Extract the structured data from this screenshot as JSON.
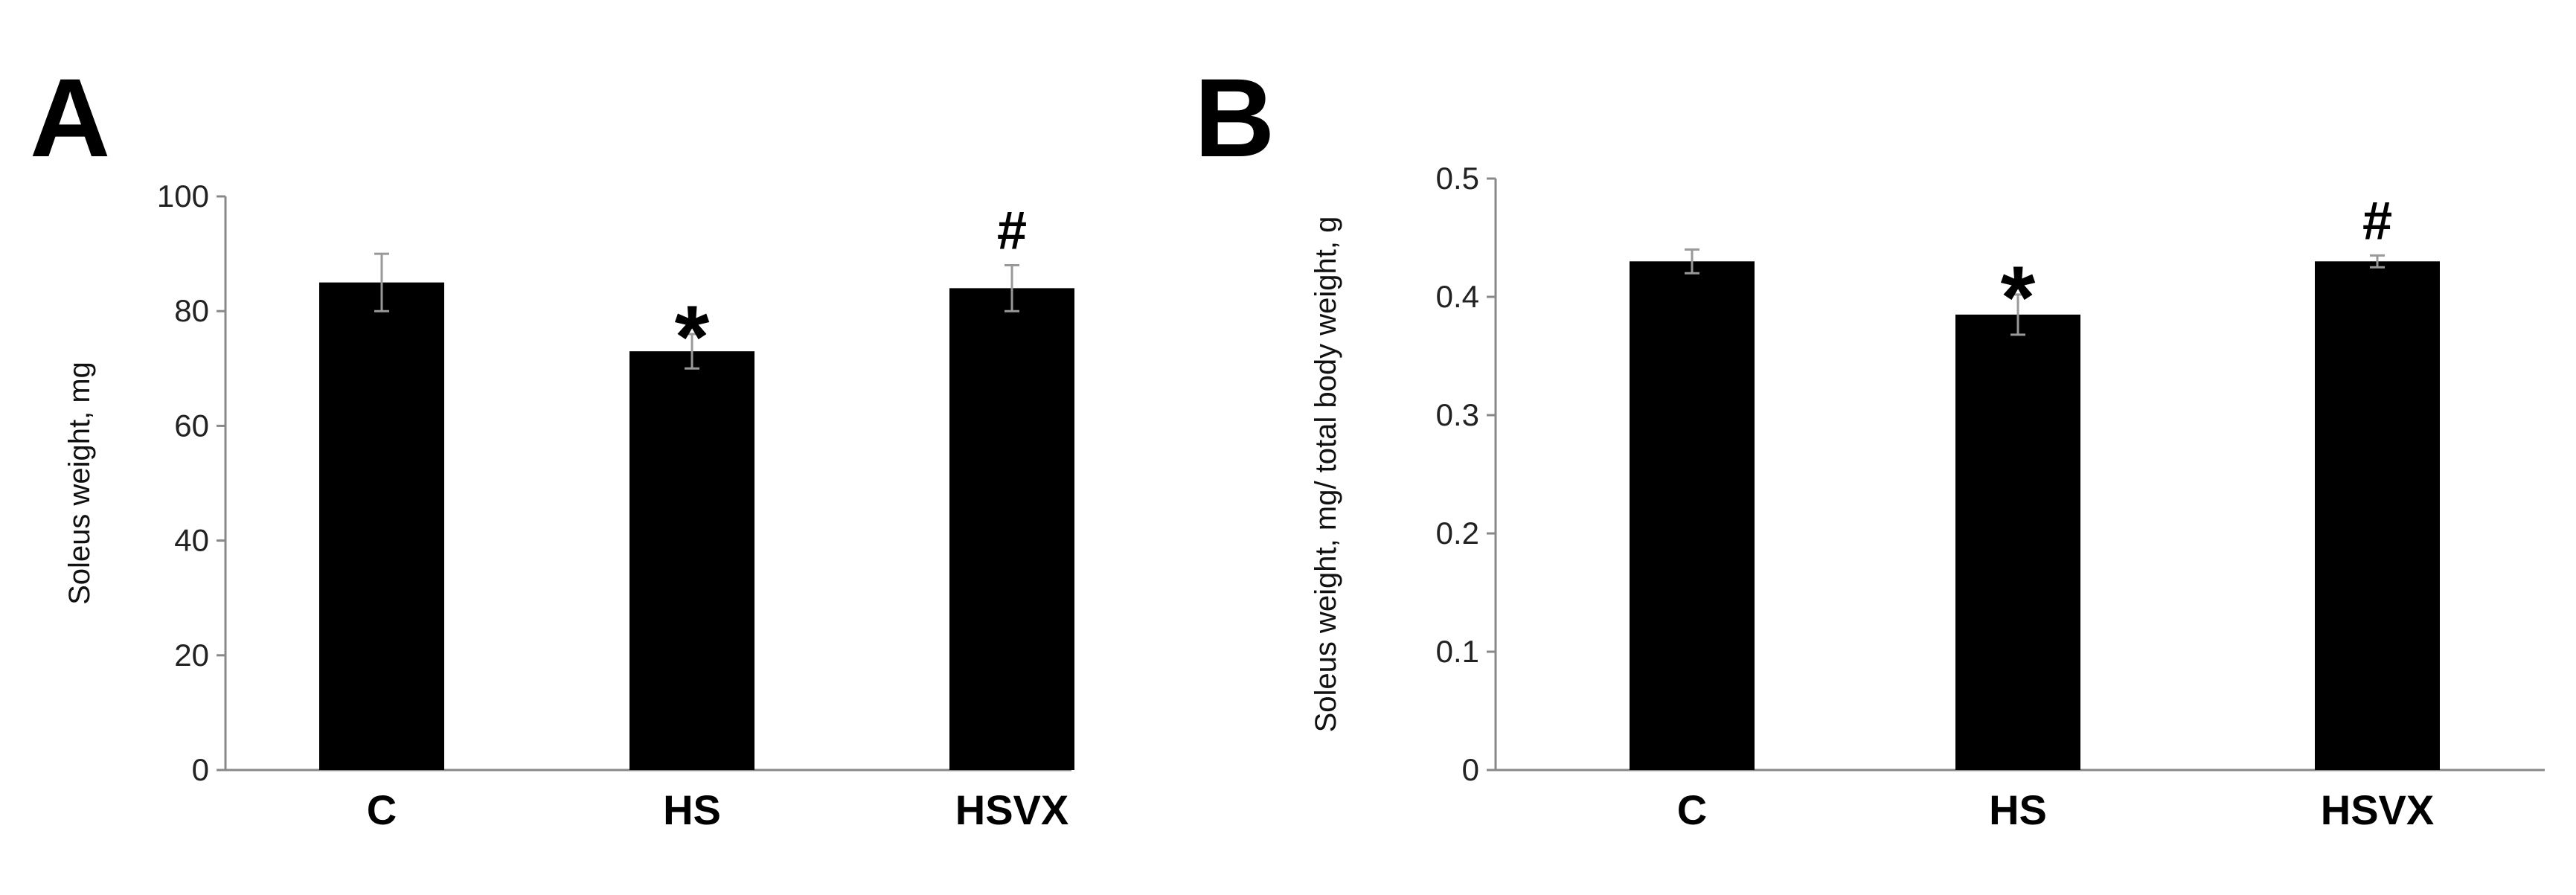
{
  "chart_data": [
    {
      "type": "bar",
      "panel": "A",
      "title": "",
      "xlabel": "",
      "ylabel": "Soleus weight, mg",
      "categories": [
        "C",
        "HS",
        "HSVX"
      ],
      "values": [
        85,
        73,
        84
      ],
      "errors": [
        5,
        3,
        4
      ],
      "annotations": [
        "",
        "*",
        "#"
      ],
      "ylim": [
        0,
        100
      ],
      "yticks": [
        0,
        20,
        40,
        60,
        80,
        100
      ],
      "ytick_labels": [
        "0",
        "20",
        "40",
        "60",
        "80",
        "100"
      ],
      "grid": false,
      "bar_color": "#000000"
    },
    {
      "type": "bar",
      "panel": "B",
      "title": "",
      "xlabel": "",
      "ylabel": "Soleus weight, mg/ total body weight, g",
      "categories": [
        "C",
        "HS",
        "HSVX"
      ],
      "values": [
        0.43,
        0.385,
        0.43
      ],
      "errors": [
        0.01,
        0.017,
        0.005
      ],
      "annotations": [
        "",
        "*",
        "#"
      ],
      "ylim": [
        0,
        0.5
      ],
      "yticks": [
        0,
        0.1,
        0.2,
        0.3,
        0.4,
        0.5
      ],
      "ytick_labels": [
        "0",
        "0.1",
        "0.2",
        "0.3",
        "0.4",
        "0.5"
      ],
      "grid": false,
      "bar_color": "#000000"
    }
  ]
}
